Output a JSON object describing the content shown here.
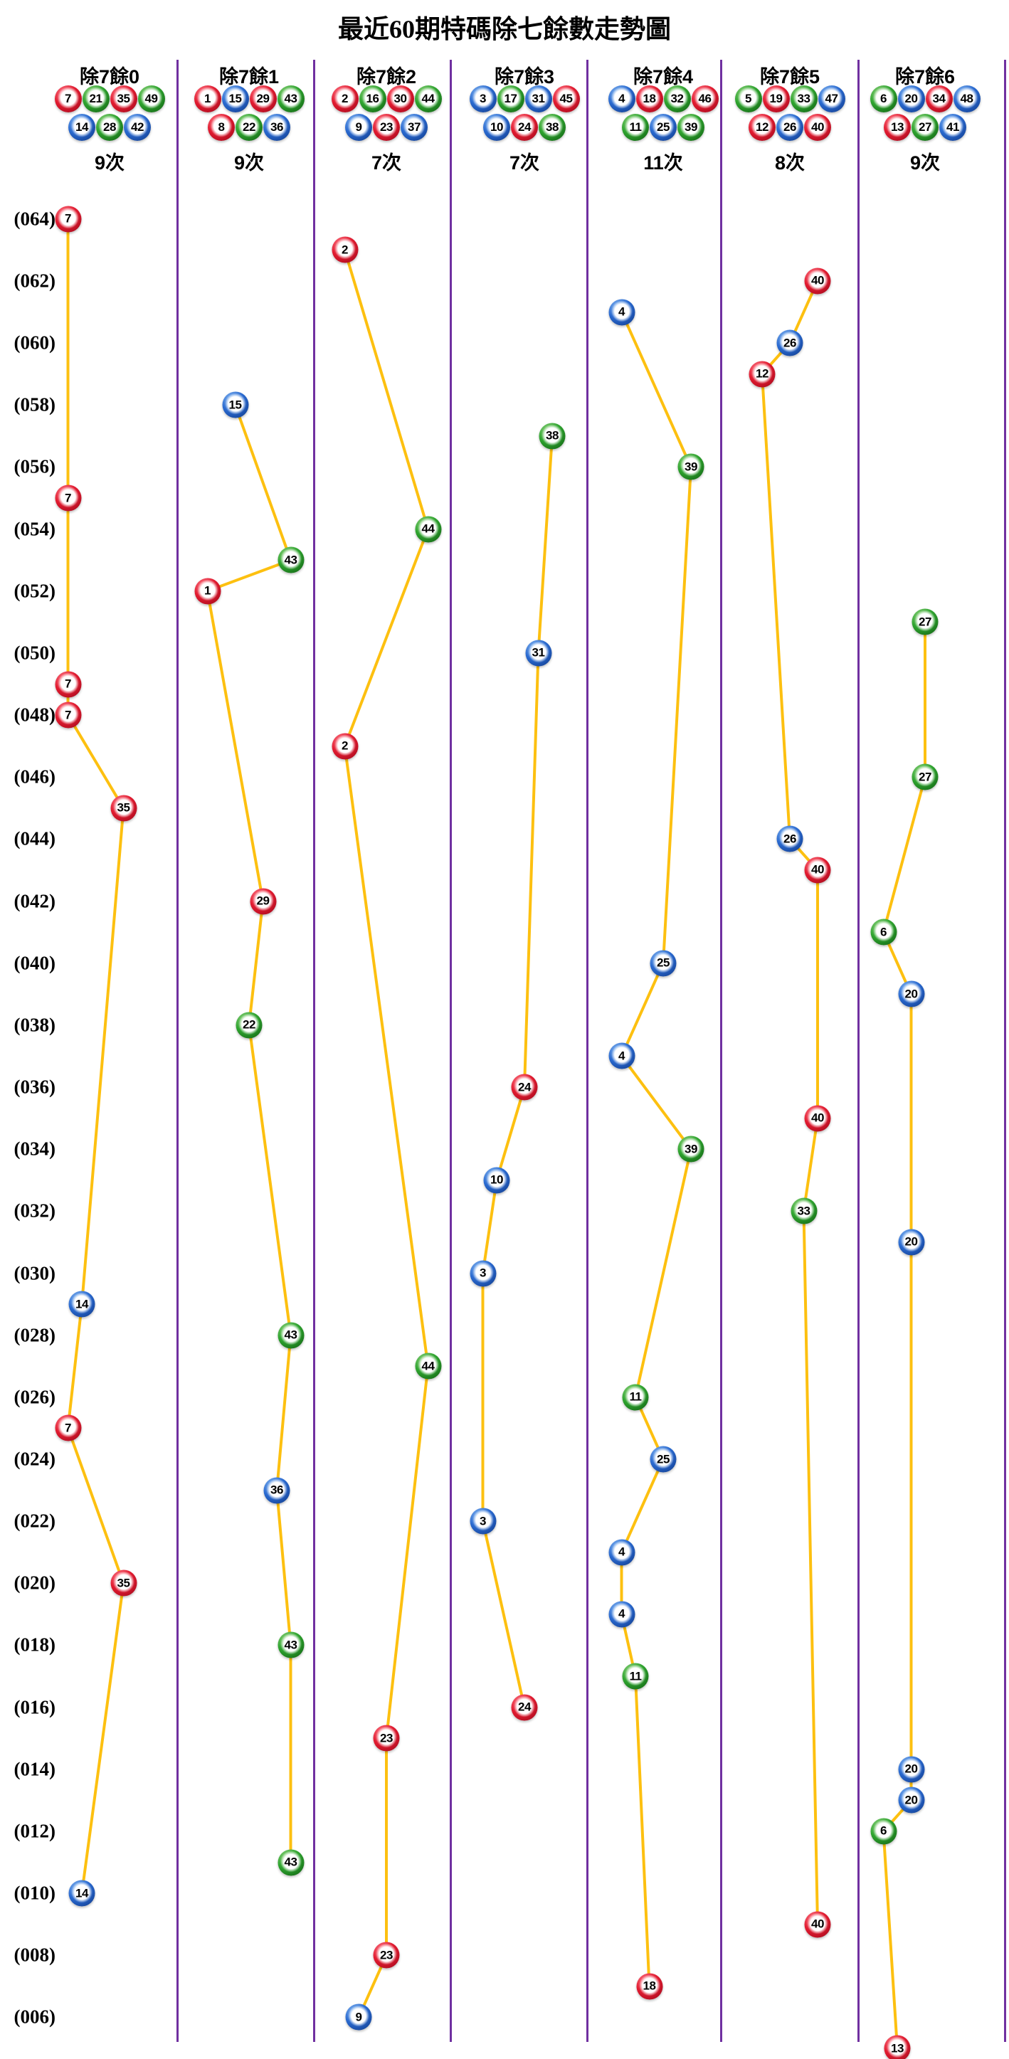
{
  "chart_data": {
    "type": "scatter",
    "title": "最近60期特碼除七餘數走勢圖",
    "legend_position": "none",
    "grid": "vertical-dividers-only",
    "y_axis": {
      "top_period": 64,
      "bottom_period": 5,
      "labels": [
        "(064)",
        "(062)",
        "(060)",
        "(058)",
        "(056)",
        "(054)",
        "(052)",
        "(050)",
        "(048)",
        "(046)",
        "(044)",
        "(042)",
        "(040)",
        "(038)",
        "(036)",
        "(034)",
        "(032)",
        "(030)",
        "(028)",
        "(026)",
        "(024)",
        "(022)",
        "(020)",
        "(018)",
        "(016)",
        "(014)",
        "(012)",
        "(010)",
        "(008)",
        "(006)"
      ]
    },
    "columns": [
      {
        "label": "除7餘0",
        "balls_row1": [
          7,
          21,
          35,
          49
        ],
        "balls_row2": [
          14,
          28,
          42
        ],
        "count": "9次",
        "count_value": 9
      },
      {
        "label": "除7餘1",
        "balls_row1": [
          1,
          15,
          29,
          43
        ],
        "balls_row2": [
          8,
          22,
          36
        ],
        "count": "9次",
        "count_value": 9
      },
      {
        "label": "除7餘2",
        "balls_row1": [
          2,
          16,
          30,
          44
        ],
        "balls_row2": [
          9,
          23,
          37
        ],
        "count": "7次",
        "count_value": 7
      },
      {
        "label": "除7餘3",
        "balls_row1": [
          3,
          17,
          31,
          45
        ],
        "balls_row2": [
          10,
          24,
          38
        ],
        "count": "7次",
        "count_value": 7
      },
      {
        "label": "除7餘4",
        "balls_row1": [
          4,
          18,
          32,
          46
        ],
        "balls_row2": [
          11,
          25,
          39
        ],
        "count": "11次",
        "count_value": 11
      },
      {
        "label": "除7餘5",
        "balls_row1": [
          5,
          19,
          33,
          47
        ],
        "balls_row2": [
          12,
          26,
          40
        ],
        "count": "8次",
        "count_value": 8
      },
      {
        "label": "除7餘6",
        "balls_row1": [
          6,
          20,
          34,
          48
        ],
        "balls_row2": [
          13,
          27,
          41
        ],
        "count": "9次",
        "count_value": 9
      }
    ],
    "point_format": [
      "period",
      "column_index",
      "number"
    ],
    "points": [
      [
        64,
        0,
        7
      ],
      [
        63,
        2,
        2
      ],
      [
        62,
        5,
        40
      ],
      [
        61,
        4,
        4
      ],
      [
        60,
        5,
        26
      ],
      [
        59,
        5,
        12
      ],
      [
        58,
        1,
        15
      ],
      [
        57,
        3,
        38
      ],
      [
        56,
        4,
        39
      ],
      [
        55,
        0,
        7
      ],
      [
        54,
        2,
        44
      ],
      [
        53,
        1,
        43
      ],
      [
        52,
        1,
        1
      ],
      [
        51,
        6,
        27
      ],
      [
        50,
        3,
        31
      ],
      [
        49,
        0,
        7
      ],
      [
        48,
        0,
        7
      ],
      [
        47,
        2,
        2
      ],
      [
        46,
        6,
        27
      ],
      [
        45,
        0,
        35
      ],
      [
        44,
        5,
        26
      ],
      [
        43,
        5,
        40
      ],
      [
        42,
        1,
        29
      ],
      [
        41,
        6,
        6
      ],
      [
        40,
        4,
        25
      ],
      [
        39,
        6,
        20
      ],
      [
        38,
        1,
        22
      ],
      [
        37,
        4,
        4
      ],
      [
        36,
        3,
        24
      ],
      [
        35,
        5,
        40
      ],
      [
        34,
        4,
        39
      ],
      [
        33,
        3,
        10
      ],
      [
        32,
        5,
        33
      ],
      [
        31,
        6,
        20
      ],
      [
        30,
        3,
        3
      ],
      [
        29,
        0,
        14
      ],
      [
        28,
        1,
        43
      ],
      [
        27,
        2,
        44
      ],
      [
        26,
        4,
        11
      ],
      [
        25,
        0,
        7
      ],
      [
        24,
        4,
        25
      ],
      [
        23,
        1,
        36
      ],
      [
        22,
        3,
        3
      ],
      [
        21,
        4,
        4
      ],
      [
        20,
        0,
        35
      ],
      [
        19,
        4,
        4
      ],
      [
        18,
        1,
        43
      ],
      [
        17,
        4,
        11
      ],
      [
        16,
        3,
        24
      ],
      [
        15,
        2,
        23
      ],
      [
        14,
        6,
        20
      ],
      [
        13,
        6,
        20
      ],
      [
        12,
        6,
        6
      ],
      [
        11,
        1,
        43
      ],
      [
        10,
        0,
        14
      ],
      [
        9,
        5,
        40
      ],
      [
        8,
        2,
        23
      ],
      [
        7,
        4,
        18
      ],
      [
        6,
        2,
        9
      ],
      [
        5,
        6,
        13
      ]
    ]
  },
  "ball_color_groups": {
    "red": [
      1,
      2,
      7,
      8,
      12,
      13,
      18,
      19,
      23,
      24,
      29,
      30,
      34,
      35,
      40,
      45,
      46
    ],
    "blue": [
      3,
      4,
      9,
      10,
      14,
      15,
      20,
      25,
      26,
      31,
      36,
      37,
      41,
      42,
      47,
      48
    ],
    "green": [
      5,
      6,
      11,
      16,
      17,
      21,
      22,
      27,
      28,
      32,
      33,
      38,
      39,
      43,
      44,
      49
    ]
  },
  "colors": {
    "red_ball": "#e11b30",
    "blue_ball": "#2a6ad0",
    "green_ball": "#2fa42f",
    "trend_line": "#fdc010",
    "divider": "#7030a0",
    "text": "#000000",
    "background": "#ffffff"
  }
}
